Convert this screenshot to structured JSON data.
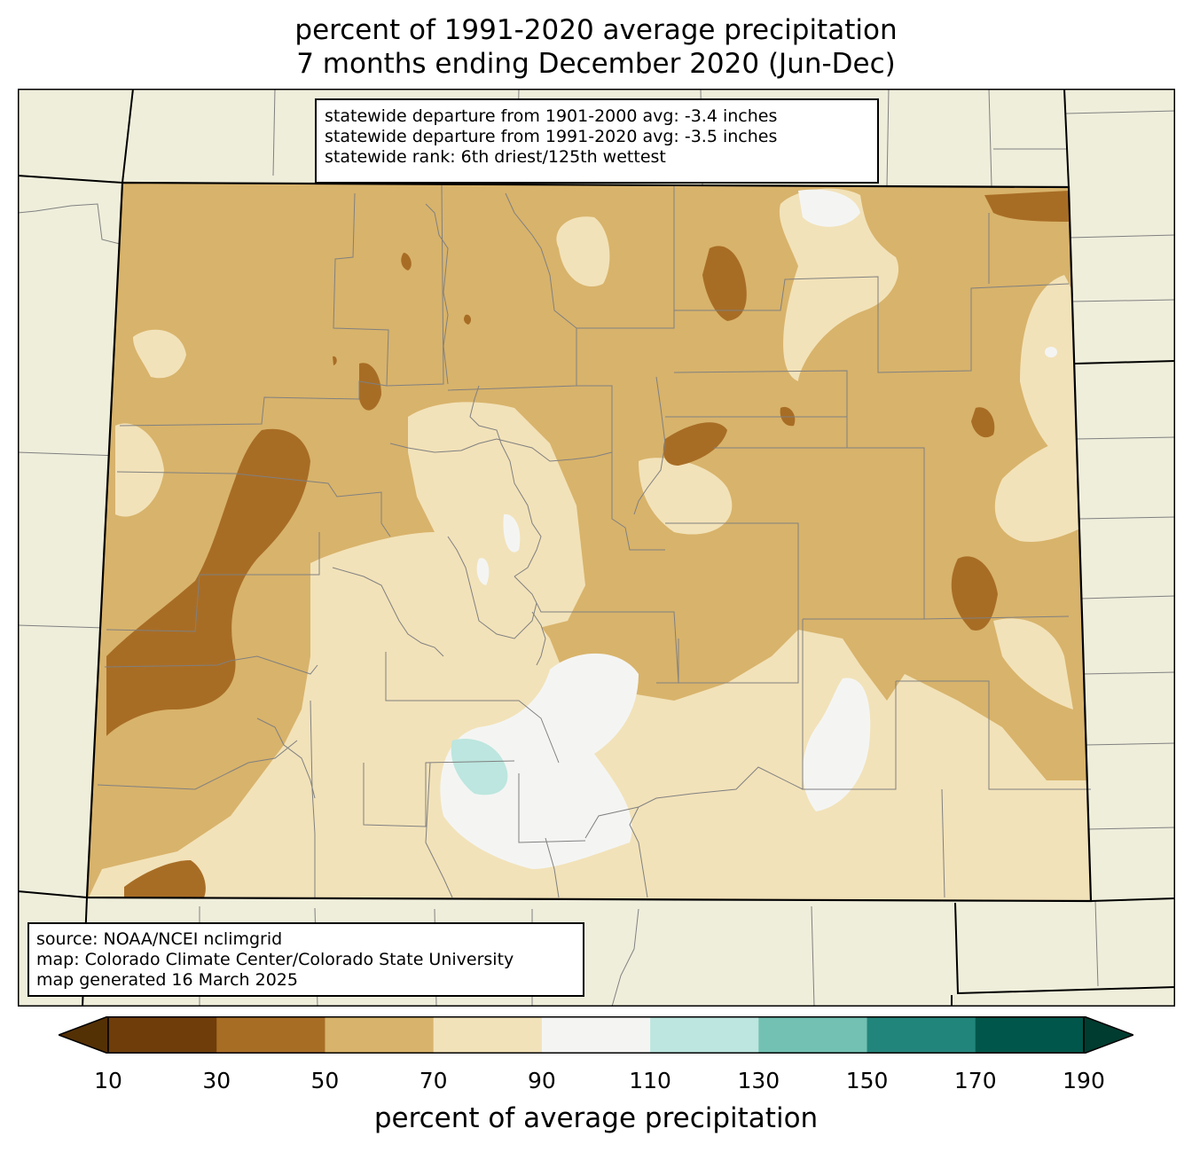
{
  "title": {
    "line1": "percent of 1991-2020 average precipitation",
    "line2": "7 months ending December 2020 (Jun-Dec)"
  },
  "stats": {
    "line1": "statewide departure from 1901-2000 avg: -3.4 inches",
    "line2": "statewide departure from 1991-2020 avg: -3.5 inches",
    "line3": "statewide rank: 6th driest/125th wettest"
  },
  "source": {
    "line1": "source: NOAA/NCEI nclimgrid",
    "line2": "map: Colorado Climate Center/Colorado State University",
    "line3": "map generated 16 March 2025"
  },
  "colorbar": {
    "label": "percent of average precipitation",
    "ticks": [
      "10",
      "30",
      "50",
      "70",
      "90",
      "110",
      "130",
      "150",
      "170",
      "190"
    ],
    "bins": [
      {
        "range": "<10",
        "color": "#543005"
      },
      {
        "range": "10-30",
        "color": "#6f3d0a"
      },
      {
        "range": "30-50",
        "color": "#a86d25"
      },
      {
        "range": "50-70",
        "color": "#d8b36b"
      },
      {
        "range": "70-90",
        "color": "#f2e2b9"
      },
      {
        "range": "90-110",
        "color": "#f4f5f3"
      },
      {
        "range": "110-130",
        "color": "#bce6df"
      },
      {
        "range": "130-150",
        "color": "#72c1b2"
      },
      {
        "range": "150-170",
        "color": "#22857c"
      },
      {
        "range": "170-190",
        "color": "#00564a"
      },
      {
        "range": ">190",
        "color": "#003c30"
      }
    ]
  },
  "map_colors": {
    "background_land": "#efeedb",
    "boundary": "#000000",
    "county_line": "#808080"
  }
}
